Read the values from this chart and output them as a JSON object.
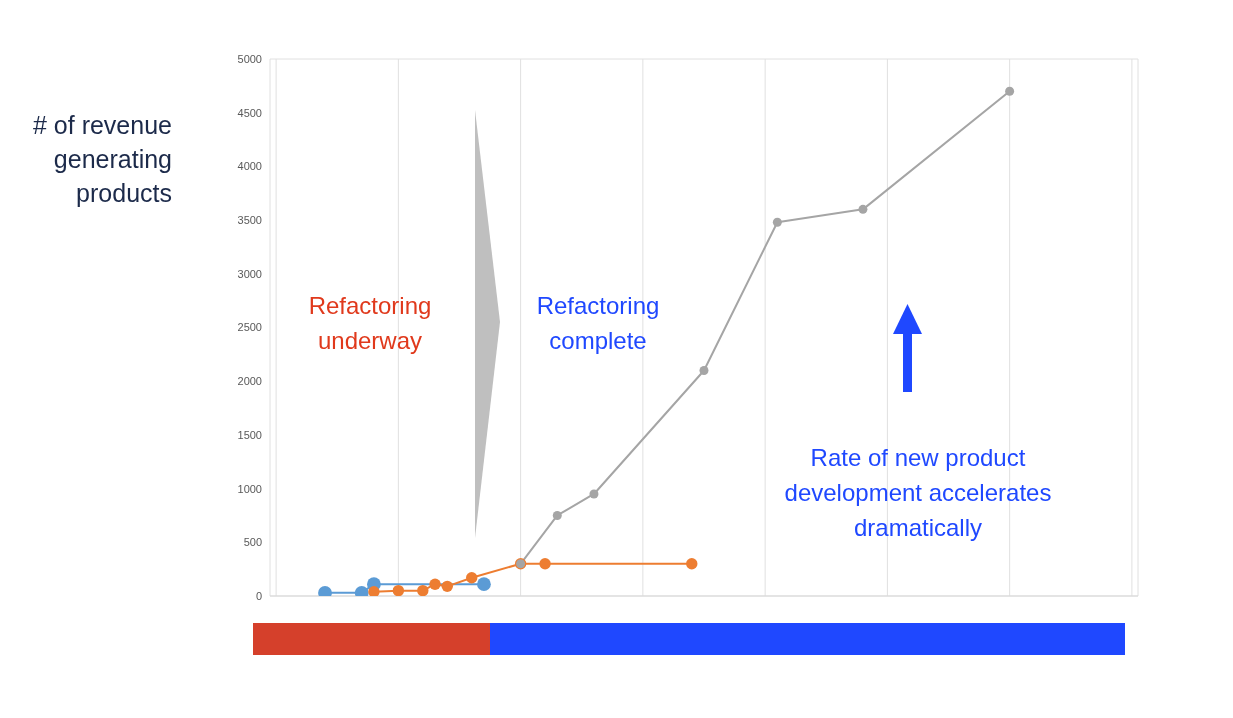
{
  "chart_data": {
    "type": "line",
    "ylabel": "# of revenue generating products",
    "categories": [
      null,
      null,
      null,
      null,
      null,
      null,
      null,
      null,
      null,
      null,
      null,
      null,
      null,
      null,
      null,
      null,
      null,
      null,
      null,
      null,
      null,
      null,
      null,
      null,
      null,
      null,
      null,
      null,
      null,
      null,
      null,
      null,
      null,
      null,
      null,
      null,
      null,
      null,
      null,
      null,
      null,
      null,
      null,
      null,
      null,
      null,
      null,
      null,
      null,
      null,
      null,
      null,
      null,
      null,
      null,
      null,
      null,
      null,
      null,
      null,
      null,
      null,
      null,
      null,
      null,
      null,
      null,
      null,
      null,
      null,
      null
    ],
    "ylim": [
      0,
      5000
    ],
    "yticks": [
      0,
      500,
      1000,
      1500,
      2000,
      2500,
      3000,
      3500,
      4000,
      4500,
      5000
    ],
    "grid": true,
    "marker": "circle",
    "line_style": "solid",
    "series": [
      {
        "color": "#5b9bd5",
        "values": [
          null,
          null,
          null,
          null,
          30,
          null,
          null,
          30,
          110,
          null,
          null,
          null,
          null,
          null,
          null,
          null,
          null,
          110,
          null,
          null,
          null,
          null,
          null,
          null,
          null,
          null,
          null,
          null,
          null,
          null,
          null,
          null,
          null,
          null,
          null,
          null,
          null,
          null,
          null,
          null,
          null,
          null,
          null,
          null,
          null,
          null,
          null,
          null,
          null,
          null,
          null,
          null,
          null,
          null,
          null,
          null,
          null,
          null,
          null,
          null,
          null,
          null,
          null,
          null,
          null,
          null,
          null,
          null,
          null,
          null,
          null
        ]
      },
      {
        "color": "#ed7d31",
        "values": [
          null,
          null,
          null,
          null,
          null,
          null,
          null,
          null,
          40,
          null,
          50,
          null,
          50,
          110,
          90,
          null,
          170,
          null,
          null,
          null,
          300,
          null,
          300,
          null,
          null,
          null,
          null,
          null,
          null,
          null,
          null,
          null,
          null,
          null,
          300,
          null,
          null,
          null,
          null,
          null,
          null,
          null,
          null,
          null,
          null,
          null,
          null,
          null,
          null,
          null,
          null,
          null,
          null,
          null,
          null,
          null,
          null,
          null,
          null,
          null,
          null,
          null,
          null,
          null,
          null,
          null,
          null,
          null,
          null,
          null,
          null
        ]
      },
      {
        "color": "#a5a5a5",
        "values": [
          null,
          null,
          null,
          null,
          null,
          null,
          null,
          null,
          null,
          null,
          null,
          null,
          null,
          null,
          null,
          null,
          null,
          null,
          null,
          null,
          300,
          null,
          null,
          750,
          null,
          null,
          950,
          null,
          null,
          null,
          null,
          null,
          null,
          null,
          null,
          2100,
          null,
          null,
          null,
          null,
          null,
          3480,
          null,
          null,
          null,
          null,
          null,
          null,
          3600,
          null,
          null,
          null,
          null,
          null,
          null,
          null,
          null,
          null,
          null,
          null,
          4700,
          null,
          null,
          null,
          null,
          null,
          null,
          null,
          null,
          null,
          null
        ]
      }
    ],
    "annotations": [
      "Refactoring underway",
      "Refactoring complete",
      "Rate of new product development accelerates dramatically"
    ]
  }
}
